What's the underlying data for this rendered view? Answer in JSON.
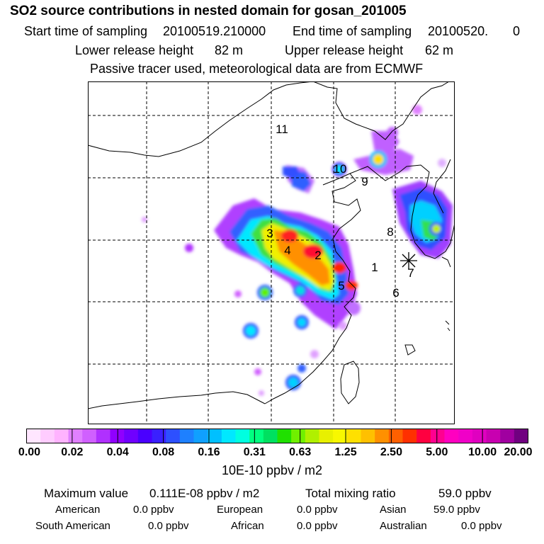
{
  "title": "SO2 source contributions in nested domain for gosan_201005",
  "header": {
    "start_label": "Start time of sampling",
    "start_value": "20100519.210000",
    "end_label": "End time of sampling",
    "end_value": "20100520.",
    "end_value_tail": "0",
    "lower_label": "Lower release height",
    "lower_value": "82 m",
    "upper_label": "Upper release height",
    "upper_value": "62 m",
    "note": "Passive tracer used, meteorological data are from ECMWF"
  },
  "map": {
    "region_labels": [
      "1",
      "2",
      "3",
      "4",
      "5",
      "6",
      "7",
      "8",
      "9",
      "10",
      "11"
    ],
    "receptor_marker": "star-icon"
  },
  "colorbar": {
    "tick_labels": [
      "0.00",
      "0.02",
      "0.04",
      "0.08",
      "0.16",
      "0.31",
      "0.63",
      "1.25",
      "2.50",
      "5.00",
      "10.00",
      "20.00"
    ],
    "colors": [
      "#ffe6ff",
      "#ffccff",
      "#ffb3ff",
      "#e080ff",
      "#d060ff",
      "#b030ff",
      "#9000ff",
      "#7000ff",
      "#4a00ff",
      "#3a20ff",
      "#2d50ff",
      "#1e80ff",
      "#10a0ff",
      "#00c0ff",
      "#00e8ff",
      "#00ffe0",
      "#00ff80",
      "#00e060",
      "#20e000",
      "#70f000",
      "#b0f000",
      "#e8f000",
      "#f8f800",
      "#ffe000",
      "#ffc000",
      "#ff9000",
      "#ff6000",
      "#ff3000",
      "#ff0040",
      "#ff0090",
      "#ff00c0",
      "#f000c8",
      "#e000c0",
      "#c800b0",
      "#a000a0",
      "#700080"
    ],
    "units": "10E-10 ppbv / m2"
  },
  "summary": {
    "max_label": "Maximum value",
    "max_value": "0.111E-08 ppbv / m2",
    "total_label": "Total mixing ratio",
    "total_value": "59.0 ppbv",
    "regions": [
      {
        "name": "American",
        "value": "0.0 ppbv"
      },
      {
        "name": "European",
        "value": "0.0 ppbv"
      },
      {
        "name": "Asian",
        "value": "59.0 ppbv"
      },
      {
        "name": "South American",
        "value": "0.0 ppbv"
      },
      {
        "name": "African",
        "value": "0.0 ppbv"
      },
      {
        "name": "Australian",
        "value": "0.0 ppbv"
      }
    ]
  }
}
